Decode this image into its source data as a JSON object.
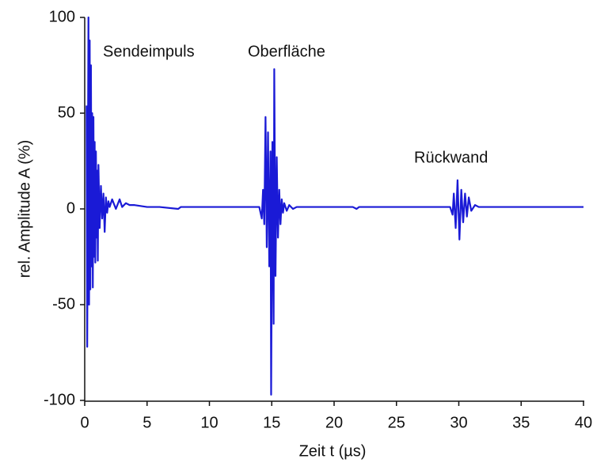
{
  "chart_data": {
    "type": "line",
    "xlabel": "Zeit t (µs)",
    "ylabel": "rel. Amplitude  A (%)",
    "annotations": [
      "Sendeimpuls",
      "Oberfläche",
      "Rückwand"
    ],
    "x": [
      0.15,
      0.2,
      0.3,
      0.35,
      0.4,
      0.45,
      0.5,
      0.55,
      0.6,
      0.65,
      0.7,
      0.75,
      0.8,
      0.85,
      0.9,
      0.95,
      1.0,
      1.05,
      1.1,
      1.2,
      1.3,
      1.4,
      1.5,
      1.6,
      1.7,
      1.8,
      1.9,
      2.0,
      2.2,
      2.5,
      2.8,
      3.0,
      3.3,
      3.6,
      4.0,
      5.0,
      6.0,
      7.5,
      7.7,
      8.0,
      14.0,
      14.2,
      14.3,
      14.4,
      14.5,
      14.6,
      14.7,
      14.8,
      14.9,
      14.95,
      15.05,
      15.15,
      15.2,
      15.3,
      15.4,
      15.5,
      15.6,
      15.7,
      15.8,
      15.9,
      16.0,
      16.2,
      16.4,
      16.7,
      17.0,
      18.0,
      21.5,
      21.8,
      22.0,
      29.0,
      29.3,
      29.5,
      29.6,
      29.75,
      29.9,
      30.05,
      30.2,
      30.35,
      30.5,
      30.65,
      30.8,
      31.0,
      31.3,
      31.6,
      32.0,
      33.0,
      40.0
    ],
    "series": [
      {
        "color": "#1a1ad6",
        "values": [
          54,
          -72,
          100,
          -50,
          88,
          -42,
          75,
          -30,
          50,
          -41,
          48,
          -25,
          35,
          -28,
          30,
          -15,
          20,
          -27,
          23,
          -10,
          12,
          -5,
          8,
          -12,
          6,
          -2,
          4,
          1,
          5,
          0,
          5,
          1,
          3,
          2,
          2,
          1,
          1,
          0,
          1,
          1,
          1,
          -5,
          10,
          -8,
          48,
          -20,
          40,
          -30,
          30,
          -97,
          35,
          -60,
          73,
          -35,
          27,
          -15,
          10,
          -8,
          5,
          -2,
          3,
          -1,
          2,
          0,
          1,
          1,
          1,
          0,
          1,
          1,
          1,
          -3,
          8,
          -10,
          15,
          -16,
          10,
          -7,
          8,
          -4,
          6,
          -1,
          2,
          1,
          1,
          1,
          1
        ]
      }
    ],
    "xlim": [
      0,
      40
    ],
    "xticks": [
      0,
      5,
      10,
      15,
      20,
      25,
      30,
      35,
      40
    ],
    "ylim": [
      -100,
      100
    ],
    "yticks": [
      -100,
      -50,
      0,
      50,
      100
    ]
  }
}
